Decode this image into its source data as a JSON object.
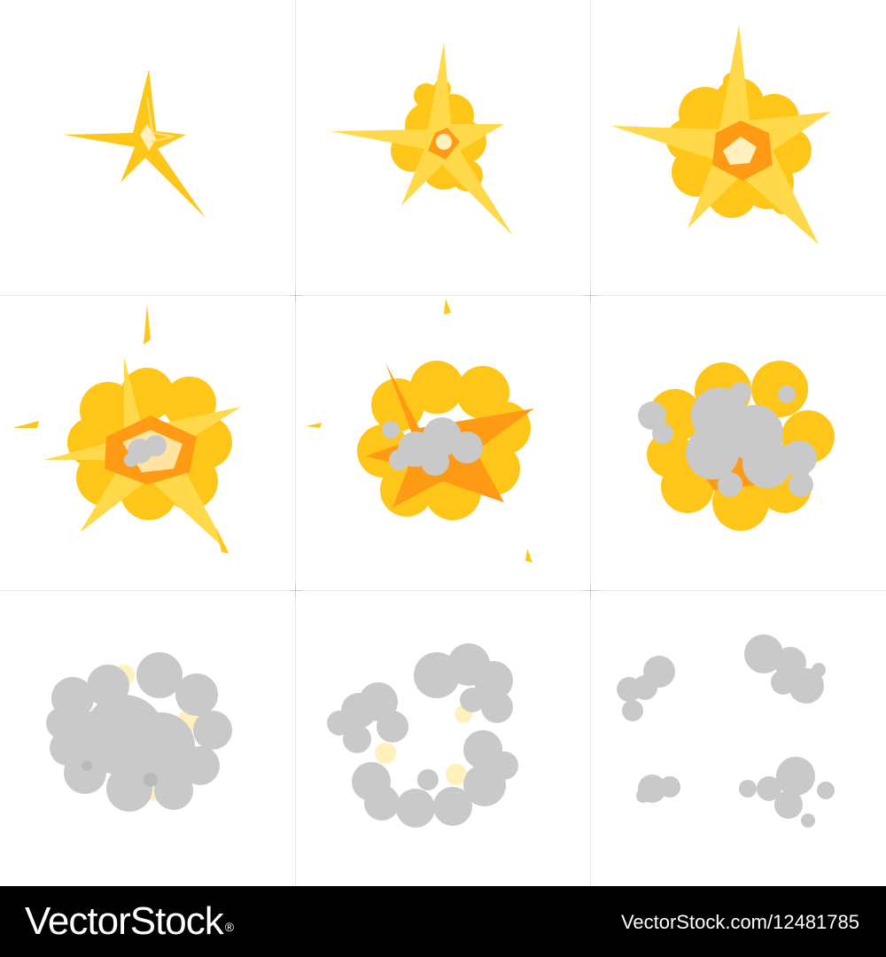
{
  "sprite_sheet": {
    "frames": [
      {
        "index": 1,
        "stage": "spark"
      },
      {
        "index": 2,
        "stage": "ignition"
      },
      {
        "index": 3,
        "stage": "blast"
      },
      {
        "index": 4,
        "stage": "fireball"
      },
      {
        "index": 5,
        "stage": "fireball-smoke"
      },
      {
        "index": 6,
        "stage": "smoke-over-fire"
      },
      {
        "index": 7,
        "stage": "smoke-cloud"
      },
      {
        "index": 8,
        "stage": "smoke-ring"
      },
      {
        "index": 9,
        "stage": "smoke-dissipate"
      }
    ],
    "colors": {
      "fire_yellow": "#ffc61a",
      "fire_light": "#ffe07a",
      "fire_orange": "#ff9a14",
      "core": "#fff1bd",
      "smoke": "#c9c9c9",
      "smoke_shadow": "#b9b9b9"
    }
  },
  "footer": {
    "brand": "VectorStock",
    "registered_mark": "®",
    "caption": "VectorStock.com/12481785"
  }
}
